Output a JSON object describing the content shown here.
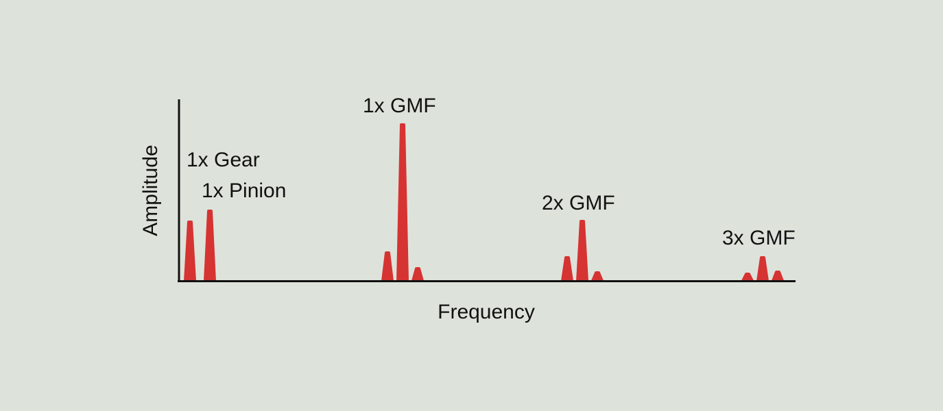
{
  "axes": {
    "x_label": "Frequency",
    "y_label": "Amplitude"
  },
  "peak_labels": [
    "1x Gear",
    "1x Pinion",
    "1x GMF",
    "2x GMF",
    "3x GMF"
  ]
}
